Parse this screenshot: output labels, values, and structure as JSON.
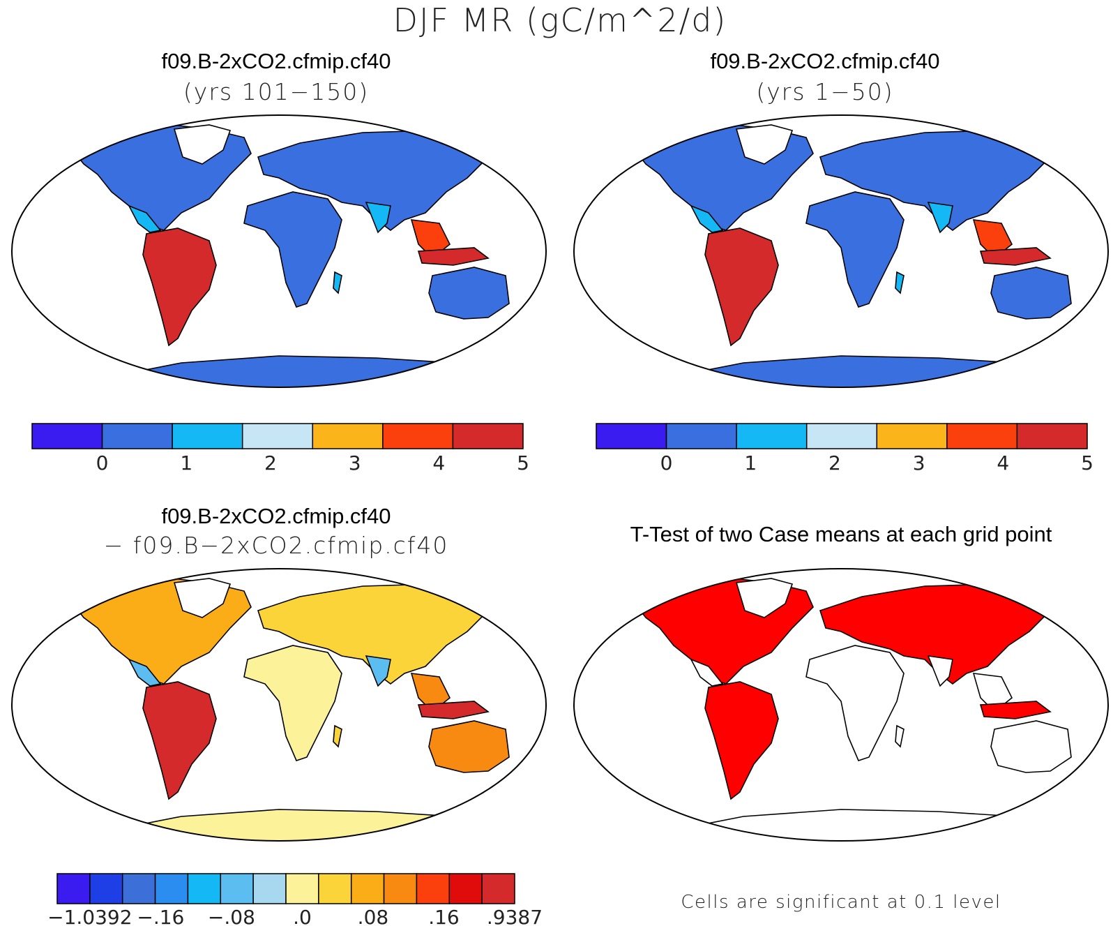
{
  "figure": {
    "title": "DJF MR (gC/m^2/d)"
  },
  "panels": [
    {
      "title": "f09.B-2xCO2.cfmip.cf40",
      "subtitle": "(yrs 101−150)",
      "colorbar": {
        "colors": [
          "#3b1cf0",
          "#3a6fe0",
          "#14b8f5",
          "#c6e6f6",
          "#fbb51b",
          "#fb3f0d",
          "#d42a2c"
        ],
        "labels": [
          "0",
          "1",
          "2",
          "3",
          "4",
          "5"
        ]
      }
    },
    {
      "title": "f09.B-2xCO2.cfmip.cf40",
      "subtitle": "(yrs 1−50)",
      "colorbar": {
        "colors": [
          "#3b1cf0",
          "#3a6fe0",
          "#14b8f5",
          "#c6e6f6",
          "#fbb51b",
          "#fb3f0d",
          "#d42a2c"
        ],
        "labels": [
          "0",
          "1",
          "2",
          "3",
          "4",
          "5"
        ]
      }
    },
    {
      "title": "f09.B-2xCO2.cfmip.cf40",
      "subtitle": "− f09.B−2xCO2.cfmip.cf40",
      "colorbar": {
        "colors": [
          "#3b1cf0",
          "#1f3fe6",
          "#3d6fd8",
          "#2b8df0",
          "#14b8f5",
          "#5cbdf0",
          "#a8d8f0",
          "#fbf29a",
          "#fbd43a",
          "#fbad17",
          "#f88a12",
          "#fb3f0d",
          "#e00b0b",
          "#d42a2c"
        ],
        "labels": [
          "−1.0392",
          "−.16",
          "−.08",
          ".0",
          ".08",
          ".16",
          ".9387"
        ]
      }
    },
    {
      "title": "T-Test of two Case means at each grid point",
      "note": "Cells are significant at 0.1 level",
      "color": "#ff0000"
    }
  ]
}
